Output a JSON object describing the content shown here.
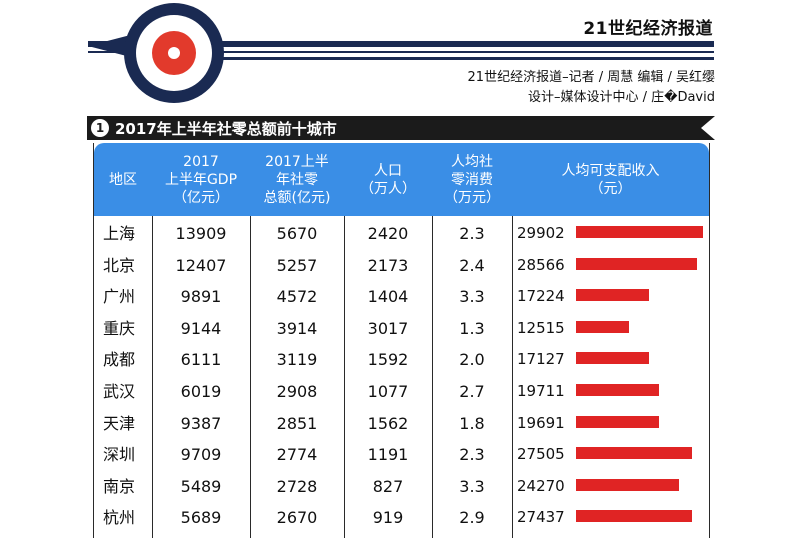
{
  "header": {
    "brand": "21世纪经济报道",
    "credit_line1": "21世纪经济报道–记者 / 周慧   编辑 / 吴红缨",
    "credit_line2": "设计–媒体设计中心 / 庄�David"
  },
  "title": {
    "number": "1",
    "text": "2017年上半年社零总额前十城市"
  },
  "table": {
    "headers": {
      "city": "地区",
      "gdp": "2017\n上半年GDP\n（亿元）",
      "retail": "2017上半\n年社零\n总额(亿元)",
      "population": "人口\n（万人）",
      "per_capita_retail": "人均社\n零消费\n（万元）",
      "income": "人均可支配收入\n（元）"
    },
    "rows": [
      {
        "city": "上海",
        "gdp": "13909",
        "retail": "5670",
        "population": "2420",
        "per_capita_retail": "2.3",
        "income": "29902"
      },
      {
        "city": "北京",
        "gdp": "12407",
        "retail": "5257",
        "population": "2173",
        "per_capita_retail": "2.4",
        "income": "28566"
      },
      {
        "city": "广州",
        "gdp": "9891",
        "retail": "4572",
        "population": "1404",
        "per_capita_retail": "3.3",
        "income": "17224"
      },
      {
        "city": "重庆",
        "gdp": "9144",
        "retail": "3914",
        "population": "3017",
        "per_capita_retail": "1.3",
        "income": "12515"
      },
      {
        "city": "成都",
        "gdp": "6111",
        "retail": "3119",
        "population": "1592",
        "per_capita_retail": "2.0",
        "income": "17127"
      },
      {
        "city": "武汉",
        "gdp": "6019",
        "retail": "2908",
        "population": "1077",
        "per_capita_retail": "2.7",
        "income": "19711"
      },
      {
        "city": "天津",
        "gdp": "9387",
        "retail": "2851",
        "population": "1562",
        "per_capita_retail": "1.8",
        "income": "19691"
      },
      {
        "city": "深圳",
        "gdp": "9709",
        "retail": "2774",
        "population": "1191",
        "per_capita_retail": "2.3",
        "income": "27505"
      },
      {
        "city": "南京",
        "gdp": "5489",
        "retail": "2728",
        "population": "827",
        "per_capita_retail": "3.3",
        "income": "24270"
      },
      {
        "city": "杭州",
        "gdp": "5689",
        "retail": "2670",
        "population": "919",
        "per_capita_retail": "2.9",
        "income": "27437"
      }
    ]
  },
  "colors": {
    "header_blue": "#3a8ee6",
    "bar_red": "#e02424",
    "band_dark": "#1b1b1b",
    "logo_navy": "#1a2a52"
  }
}
